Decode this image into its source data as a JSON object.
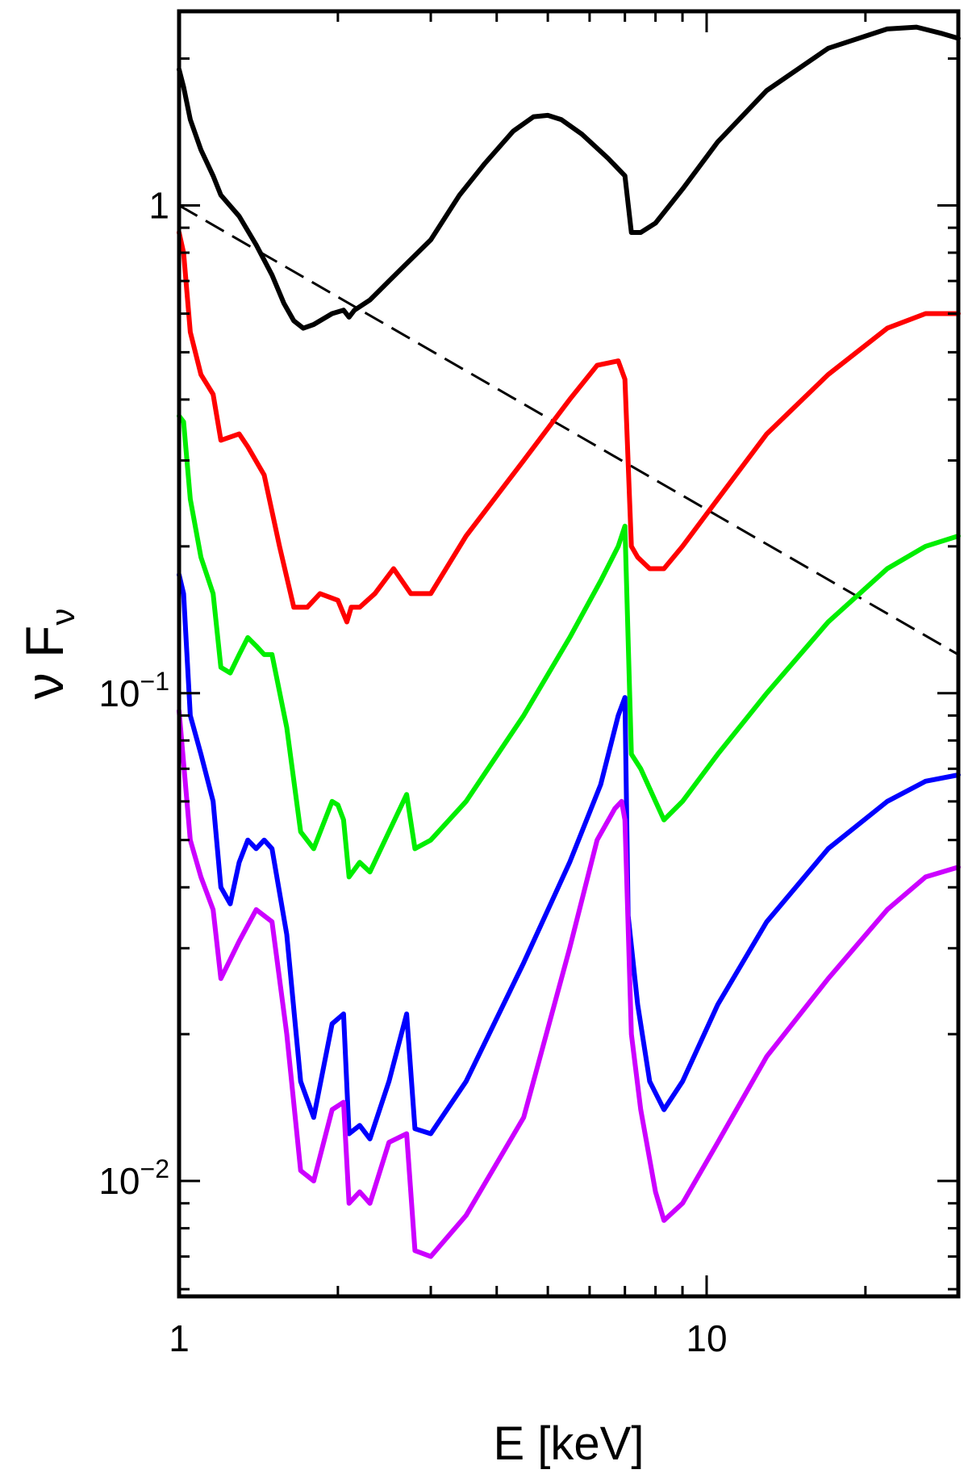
{
  "chart_data": {
    "type": "line",
    "title": "",
    "xlabel": "E [keV]",
    "ylabel": {
      "base": "ν F",
      "sub": "ν"
    },
    "xscale": "log",
    "yscale": "log",
    "xlim": [
      1,
      30
    ],
    "ylim": [
      0.0058,
      2.5
    ],
    "x_tick_labels": [
      {
        "value": 1,
        "label": "1"
      },
      {
        "value": 10,
        "label": "10"
      }
    ],
    "y_tick_labels": [
      {
        "value": 0.01,
        "base": "10",
        "exp": "−2"
      },
      {
        "value": 0.1,
        "base": "10",
        "exp": "−1"
      },
      {
        "value": 1,
        "base": "1",
        "exp": ""
      }
    ],
    "grid": false,
    "series": [
      {
        "color": "#000000",
        "style": "solid",
        "x": [
          1.0,
          1.02,
          1.05,
          1.1,
          1.16,
          1.2,
          1.3,
          1.4,
          1.5,
          1.58,
          1.65,
          1.72,
          1.8,
          1.95,
          2.05,
          2.1,
          2.15,
          2.3,
          2.5,
          2.7,
          3.0,
          3.4,
          3.8,
          4.3,
          4.7,
          5.0,
          5.3,
          5.8,
          6.5,
          7.0,
          7.2,
          7.5,
          8.0,
          9.0,
          10.5,
          13.0,
          17.0,
          22.0,
          25.0,
          28.0,
          30.0
        ],
        "y": [
          1.9,
          1.75,
          1.5,
          1.3,
          1.15,
          1.05,
          0.95,
          0.83,
          0.72,
          0.63,
          0.58,
          0.56,
          0.57,
          0.6,
          0.61,
          0.59,
          0.61,
          0.64,
          0.7,
          0.76,
          0.85,
          1.05,
          1.22,
          1.42,
          1.52,
          1.53,
          1.5,
          1.4,
          1.25,
          1.15,
          0.88,
          0.88,
          0.92,
          1.08,
          1.35,
          1.72,
          2.1,
          2.3,
          2.32,
          2.25,
          2.2
        ]
      },
      {
        "color": "#000000",
        "style": "dashed",
        "x": [
          1,
          30
        ],
        "y": [
          1.0,
          0.12
        ]
      },
      {
        "color": "#ff0000",
        "style": "solid",
        "x": [
          1.0,
          1.02,
          1.05,
          1.1,
          1.16,
          1.2,
          1.3,
          1.35,
          1.45,
          1.55,
          1.65,
          1.75,
          1.85,
          2.0,
          2.08,
          2.12,
          2.2,
          2.35,
          2.55,
          2.75,
          2.8,
          3.0,
          3.5,
          4.5,
          5.5,
          6.2,
          6.8,
          7.0,
          7.2,
          7.4,
          7.8,
          8.3,
          9.0,
          10.5,
          13.0,
          17.0,
          22.0,
          26.0,
          30.0
        ],
        "y": [
          0.88,
          0.8,
          0.55,
          0.45,
          0.41,
          0.33,
          0.34,
          0.32,
          0.28,
          0.2,
          0.15,
          0.15,
          0.16,
          0.155,
          0.14,
          0.15,
          0.15,
          0.16,
          0.18,
          0.16,
          0.16,
          0.16,
          0.21,
          0.3,
          0.4,
          0.47,
          0.48,
          0.44,
          0.2,
          0.19,
          0.18,
          0.18,
          0.2,
          0.25,
          0.34,
          0.45,
          0.56,
          0.6,
          0.6
        ]
      },
      {
        "color": "#00ee00",
        "style": "solid",
        "x": [
          1.0,
          1.02,
          1.05,
          1.1,
          1.16,
          1.2,
          1.25,
          1.3,
          1.35,
          1.4,
          1.45,
          1.5,
          1.6,
          1.7,
          1.8,
          1.95,
          2.0,
          2.05,
          2.1,
          2.2,
          2.3,
          2.5,
          2.7,
          2.8,
          3.0,
          3.5,
          4.5,
          5.5,
          6.3,
          6.8,
          7.0,
          7.2,
          7.5,
          8.0,
          8.3,
          9.0,
          10.5,
          13.0,
          17.0,
          22.0,
          26.0,
          30.0
        ],
        "y": [
          0.37,
          0.36,
          0.25,
          0.19,
          0.16,
          0.113,
          0.11,
          0.12,
          0.13,
          0.125,
          0.12,
          0.12,
          0.085,
          0.052,
          0.048,
          0.06,
          0.059,
          0.055,
          0.042,
          0.045,
          0.043,
          0.052,
          0.062,
          0.048,
          0.05,
          0.06,
          0.09,
          0.13,
          0.17,
          0.2,
          0.22,
          0.075,
          0.07,
          0.06,
          0.055,
          0.06,
          0.075,
          0.1,
          0.14,
          0.18,
          0.2,
          0.21
        ]
      },
      {
        "color": "#0000ff",
        "style": "solid",
        "x": [
          1.0,
          1.02,
          1.05,
          1.1,
          1.16,
          1.2,
          1.25,
          1.3,
          1.35,
          1.4,
          1.45,
          1.5,
          1.6,
          1.7,
          1.8,
          1.95,
          2.05,
          2.1,
          2.2,
          2.3,
          2.5,
          2.7,
          2.8,
          3.0,
          3.5,
          4.5,
          5.5,
          6.3,
          6.8,
          7.0,
          7.1,
          7.4,
          7.8,
          8.3,
          9.0,
          10.5,
          13.0,
          17.0,
          22.0,
          26.0,
          30.0
        ],
        "y": [
          0.175,
          0.16,
          0.09,
          0.075,
          0.06,
          0.04,
          0.037,
          0.045,
          0.05,
          0.048,
          0.05,
          0.048,
          0.032,
          0.016,
          0.0135,
          0.021,
          0.022,
          0.0125,
          0.013,
          0.0122,
          0.016,
          0.022,
          0.0128,
          0.0125,
          0.016,
          0.028,
          0.045,
          0.065,
          0.09,
          0.098,
          0.035,
          0.023,
          0.016,
          0.014,
          0.016,
          0.023,
          0.034,
          0.048,
          0.06,
          0.066,
          0.068
        ]
      },
      {
        "color": "#cc00ff",
        "style": "solid",
        "x": [
          1.0,
          1.02,
          1.05,
          1.1,
          1.16,
          1.2,
          1.3,
          1.4,
          1.5,
          1.6,
          1.7,
          1.8,
          1.95,
          2.05,
          2.1,
          2.2,
          2.3,
          2.5,
          2.7,
          2.8,
          3.0,
          3.5,
          4.5,
          5.5,
          6.2,
          6.7,
          6.9,
          7.0,
          7.2,
          7.5,
          8.0,
          8.3,
          9.0,
          10.5,
          13.0,
          17.0,
          22.0,
          26.0,
          30.0
        ],
        "y": [
          0.092,
          0.072,
          0.05,
          0.042,
          0.036,
          0.026,
          0.031,
          0.036,
          0.034,
          0.02,
          0.0105,
          0.01,
          0.014,
          0.0145,
          0.009,
          0.0095,
          0.009,
          0.012,
          0.0125,
          0.0072,
          0.007,
          0.0085,
          0.0135,
          0.03,
          0.05,
          0.058,
          0.06,
          0.055,
          0.02,
          0.014,
          0.0095,
          0.0083,
          0.009,
          0.012,
          0.018,
          0.026,
          0.036,
          0.042,
          0.044
        ]
      }
    ]
  }
}
